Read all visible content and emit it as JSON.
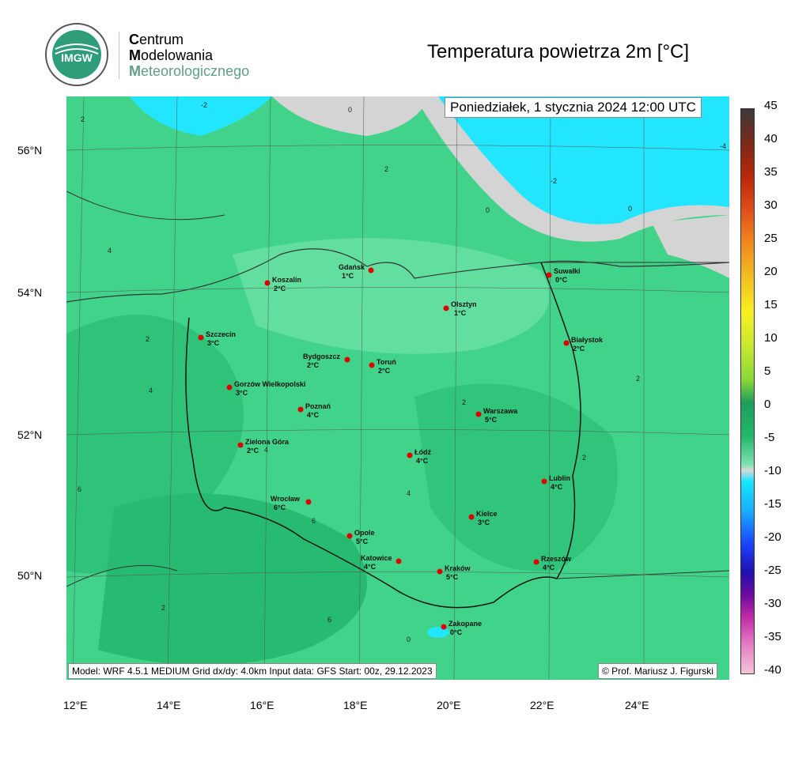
{
  "header": {
    "logo_text": "IMGW",
    "org_line1_initial": "C",
    "org_line1_rest": "entrum",
    "org_line2_initial": "M",
    "org_line2_rest": "odelowania",
    "org_line3_initial": "M",
    "org_line3_rest": "eteorologicznego",
    "title": "Temperatura powietrza 2m [°C]"
  },
  "map": {
    "date": "Poniedziałek, 1 stycznia 2024 12:00 UTC",
    "model_info": "Model: WRF 4.5.1 MEDIUM   Grid dx/dy: 4.0km   Input data: GFS   Start: 00z, 29.12.2023",
    "copyright": "© Prof. Mariusz J. Figurski",
    "lat_labels": [
      "56°N",
      "54°N",
      "52°N",
      "50°N"
    ],
    "lon_labels": [
      "12°E",
      "14°E",
      "16°E",
      "18°E",
      "20°E",
      "22°E",
      "24°E"
    ],
    "cities": [
      {
        "name": "Gdańsk",
        "temp": "1°C"
      },
      {
        "name": "Koszalin",
        "temp": "2°C"
      },
      {
        "name": "Suwałki",
        "temp": "0°C"
      },
      {
        "name": "Olsztyn",
        "temp": "1°C"
      },
      {
        "name": "Szczecin",
        "temp": "3°C"
      },
      {
        "name": "Białystok",
        "temp": "2°C"
      },
      {
        "name": "Bydgoszcz",
        "temp": "2°C"
      },
      {
        "name": "Toruń",
        "temp": "2°C"
      },
      {
        "name": "Gorzów Wielkopolski",
        "temp": "3°C"
      },
      {
        "name": "Poznań",
        "temp": "4°C"
      },
      {
        "name": "Warszawa",
        "temp": "5°C"
      },
      {
        "name": "Zielona Góra",
        "temp": "2°C"
      },
      {
        "name": "Łódź",
        "temp": "4°C"
      },
      {
        "name": "Lublin",
        "temp": "4°C"
      },
      {
        "name": "Wrocław",
        "temp": "6°C"
      },
      {
        "name": "Kielce",
        "temp": "3°C"
      },
      {
        "name": "Opole",
        "temp": "5°C"
      },
      {
        "name": "Katowice",
        "temp": "4°C"
      },
      {
        "name": "Kraków",
        "temp": "5°C"
      },
      {
        "name": "Rzeszów",
        "temp": "4°C"
      },
      {
        "name": "Zakopane",
        "temp": "0°C"
      }
    ],
    "contour_labels": [
      "-2",
      "0",
      "2",
      "4",
      "6",
      "-4"
    ]
  },
  "colorbar": {
    "labels": [
      "45",
      "40",
      "35",
      "30",
      "25",
      "20",
      "15",
      "10",
      "5",
      "0",
      "-5",
      "-10",
      "-15",
      "-20",
      "-25",
      "-30",
      "-35",
      "-40"
    ],
    "colors": {
      "warm_top": "#3a3a3a",
      "green_mid": "#22b86a",
      "cyan": "#15e6ff",
      "blue": "#1a44ff",
      "purple": "#6a0aa0",
      "pink": "#f4c6d8"
    }
  }
}
